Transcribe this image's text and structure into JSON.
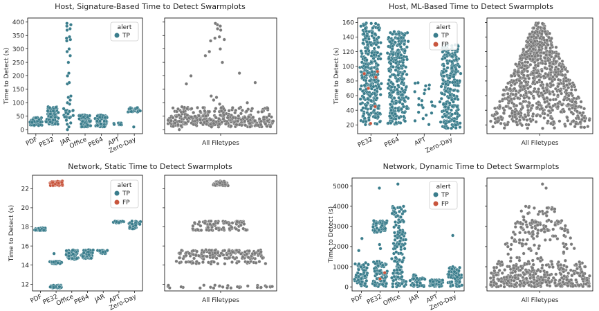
{
  "alert_legend": {
    "title": "alert",
    "entries": [
      {
        "label": "TP",
        "color": "#3a7d8c"
      },
      {
        "label": "FP",
        "color": "#c8553d"
      }
    ]
  },
  "all_color": "#7a7a7a",
  "ylabel": "Time to Detect (s)",
  "all_label": "All Filetypes",
  "chart_data": [
    {
      "type": "scatter",
      "subtype": "swarm",
      "title": "Host, Signature-Based Time to Detect Swarmplots",
      "ylim": [
        -15,
        415
      ],
      "yticks": [
        0,
        50,
        100,
        150,
        200,
        250,
        300,
        350,
        400
      ],
      "categories": [
        "PDF",
        "PE32",
        "JAR",
        "Office",
        "PE64",
        "APT",
        "Zero-Day"
      ],
      "legend_entries": [
        "TP"
      ],
      "groups": [
        {
          "category": "PDF",
          "bands": [
            [
              15,
              45,
              70
            ]
          ],
          "outliers": [],
          "fp": []
        },
        {
          "category": "PE32",
          "bands": [
            [
              20,
              85,
              95
            ]
          ],
          "outliers": [],
          "fp": []
        },
        {
          "category": "JAR",
          "bands": [
            [
              40,
              80,
              18
            ]
          ],
          "outliers": [
            0,
            10,
            20,
            25,
            35,
            95,
            100,
            110,
            120,
            125,
            170,
            175,
            200,
            210,
            250,
            275,
            290,
            300,
            330,
            335,
            340,
            345,
            370,
            375,
            385,
            390,
            395
          ],
          "fp": []
        },
        {
          "category": "Office",
          "bands": [
            [
              10,
              55,
              85
            ]
          ],
          "outliers": [],
          "fp": []
        },
        {
          "category": "PE64",
          "bands": [
            [
              10,
              55,
              75
            ]
          ],
          "outliers": [],
          "fp": []
        },
        {
          "category": "APT",
          "bands": [
            [
              18,
              25,
              10
            ]
          ],
          "outliers": [],
          "fp": []
        },
        {
          "category": "Zero-Day",
          "bands": [
            [
              65,
              82,
              25
            ]
          ],
          "outliers": [
            10
          ],
          "fp": []
        }
      ]
    },
    {
      "type": "scatter",
      "subtype": "swarm",
      "title": "Host, ML-Based Time to Detect Swarmplots",
      "ylim": [
        8,
        166
      ],
      "yticks": [
        20,
        40,
        60,
        80,
        100,
        120,
        140,
        160
      ],
      "categories": [
        "PE32",
        "PE64",
        "APT",
        "Zero-Day"
      ],
      "legend_entries": [
        "TP",
        "FP"
      ],
      "groups": [
        {
          "category": "PE32",
          "bands": [
            [
              20,
              160,
              320
            ]
          ],
          "outliers": [],
          "fp": [
            22,
            45,
            70,
            85,
            90,
            93
          ]
        },
        {
          "category": "PE64",
          "bands": [
            [
              20,
              148,
              300
            ]
          ],
          "outliers": [],
          "fp": []
        },
        {
          "category": "APT",
          "bands": [
            [
              15,
              80,
              22
            ]
          ],
          "outliers": [],
          "fp": []
        },
        {
          "category": "Zero-Day",
          "bands": [
            [
              15,
              130,
              260
            ]
          ],
          "outliers": [],
          "fp": []
        }
      ]
    },
    {
      "type": "scatter",
      "subtype": "swarm",
      "title": "Network, Static Time to Detect Swarmplots",
      "ylim": [
        11.3,
        23.4
      ],
      "yticks": [
        12,
        14,
        16,
        18,
        20,
        22
      ],
      "categories": [
        "PDF",
        "PE32",
        "Office",
        "PE64",
        "JAR",
        "APT",
        "Zero-Day"
      ],
      "legend_entries": [
        "TP",
        "FP"
      ],
      "groups": [
        {
          "category": "PDF",
          "bands": [
            [
              17.6,
              17.9,
              30
            ]
          ],
          "outliers": [],
          "fp": []
        },
        {
          "category": "PE32",
          "bands": [
            [
              14.1,
              14.4,
              35
            ],
            [
              11.6,
              11.9,
              30
            ]
          ],
          "outliers": [
            15.2
          ],
          "fp_bands": [
            [
              22.3,
              22.8,
              55
            ]
          ],
          "fp": []
        },
        {
          "category": "Office",
          "bands": [
            [
              14.6,
              15.6,
              70
            ]
          ],
          "outliers": [],
          "fp": []
        },
        {
          "category": "PE64",
          "bands": [
            [
              14.7,
              15.6,
              60
            ]
          ],
          "outliers": [],
          "fp": []
        },
        {
          "category": "JAR",
          "bands": [
            [
              15.2,
              15.6,
              25
            ]
          ],
          "outliers": [],
          "fp": []
        },
        {
          "category": "APT",
          "bands": [
            [
              18.4,
              18.6,
              22
            ]
          ],
          "outliers": [],
          "fp": []
        },
        {
          "category": "Zero-Day",
          "bands": [
            [
              17.8,
              18.6,
              45
            ]
          ],
          "outliers": [],
          "fp": []
        }
      ]
    },
    {
      "type": "scatter",
      "subtype": "swarm",
      "title": "Network, Dynamic Time to Detect Swarmplots",
      "ylim": [
        -200,
        5400
      ],
      "yticks": [
        0,
        1000,
        2000,
        3000,
        4000,
        5000
      ],
      "categories": [
        "PDF",
        "PE32",
        "Office",
        "JAR",
        "APT",
        "Zero-Day"
      ],
      "legend_entries": [
        "TP",
        "FP"
      ],
      "groups": [
        {
          "category": "PDF",
          "bands": [
            [
              0,
              1200,
              60
            ]
          ],
          "outliers": [
            1800,
            2400
          ],
          "fp": []
        },
        {
          "category": "PE32",
          "bands": [
            [
              0,
              1300,
              80
            ],
            [
              2700,
              3300,
              60
            ]
          ],
          "outliers": [
            4900,
            1900,
            2100
          ],
          "fp": [
            400,
            700
          ]
        },
        {
          "category": "Office",
          "bands": [
            [
              0,
              1500,
              70
            ],
            [
              1600,
              4000,
              90
            ]
          ],
          "outliers": [
            5100
          ],
          "fp": []
        },
        {
          "category": "JAR",
          "bands": [
            [
              0,
              600,
              40
            ]
          ],
          "outliers": [],
          "fp": []
        },
        {
          "category": "APT",
          "bands": [
            [
              0,
              350,
              60
            ]
          ],
          "outliers": [],
          "fp": []
        },
        {
          "category": "Zero-Day",
          "bands": [
            [
              0,
              1000,
              80
            ]
          ],
          "outliers": [
            2550
          ],
          "fp": []
        }
      ]
    }
  ]
}
